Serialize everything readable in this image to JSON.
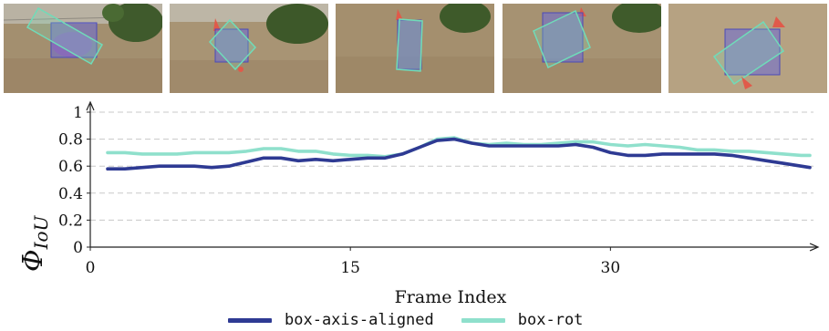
{
  "thumbnails": [
    {
      "name": "frame-thumbnail-1"
    },
    {
      "name": "frame-thumbnail-2"
    },
    {
      "name": "frame-thumbnail-3"
    },
    {
      "name": "frame-thumbnail-4"
    },
    {
      "name": "frame-thumbnail-5"
    }
  ],
  "chart_data": {
    "type": "line",
    "title": "",
    "xlabel": "Frame Index",
    "ylabel": "Φ_IoU",
    "ylabel_main": "Φ",
    "ylabel_sub": "IoU",
    "xlim": [
      0,
      41.5
    ],
    "ylim": [
      0,
      1
    ],
    "xticks": [
      0,
      15,
      30
    ],
    "xtick_labels": [
      "0",
      "15",
      "30"
    ],
    "yticks": [
      0,
      0.2,
      0.4,
      0.6,
      0.8,
      1
    ],
    "ytick_labels": [
      "0",
      "0.2",
      "0.4",
      "0.6",
      "0.8",
      "1"
    ],
    "grid": true,
    "legend_position": "bottom",
    "x": [
      1,
      2,
      3,
      4,
      5,
      6,
      7,
      8,
      9,
      10,
      11,
      12,
      13,
      14,
      15,
      16,
      17,
      18,
      19,
      20,
      21,
      22,
      23,
      24,
      25,
      26,
      27,
      28,
      29,
      30,
      31,
      32,
      33,
      34,
      35,
      36,
      37,
      38,
      39,
      40,
      41,
      41.5
    ],
    "series": [
      {
        "name": "box-axis-aligned",
        "color": "#2e3a93",
        "values": [
          0.58,
          0.58,
          0.59,
          0.6,
          0.6,
          0.6,
          0.59,
          0.6,
          0.63,
          0.66,
          0.66,
          0.64,
          0.65,
          0.64,
          0.65,
          0.66,
          0.66,
          0.69,
          0.74,
          0.79,
          0.8,
          0.77,
          0.75,
          0.75,
          0.75,
          0.75,
          0.75,
          0.76,
          0.74,
          0.7,
          0.68,
          0.68,
          0.69,
          0.69,
          0.69,
          0.69,
          0.68,
          0.66,
          0.64,
          0.62,
          0.6,
          0.59
        ]
      },
      {
        "name": "box-rot",
        "color": "#8fe0cc",
        "values": [
          0.7,
          0.7,
          0.69,
          0.69,
          0.69,
          0.7,
          0.7,
          0.7,
          0.71,
          0.73,
          0.73,
          0.71,
          0.71,
          0.69,
          0.68,
          0.68,
          0.67,
          0.69,
          0.74,
          0.8,
          0.81,
          0.77,
          0.76,
          0.77,
          0.76,
          0.76,
          0.77,
          0.78,
          0.78,
          0.76,
          0.75,
          0.76,
          0.75,
          0.74,
          0.72,
          0.72,
          0.71,
          0.71,
          0.7,
          0.69,
          0.68,
          0.68
        ]
      }
    ]
  },
  "legend": {
    "items": [
      {
        "label": "box-axis-aligned",
        "color": "#2e3a93"
      },
      {
        "label": "box-rot",
        "color": "#8fe0cc"
      }
    ]
  }
}
